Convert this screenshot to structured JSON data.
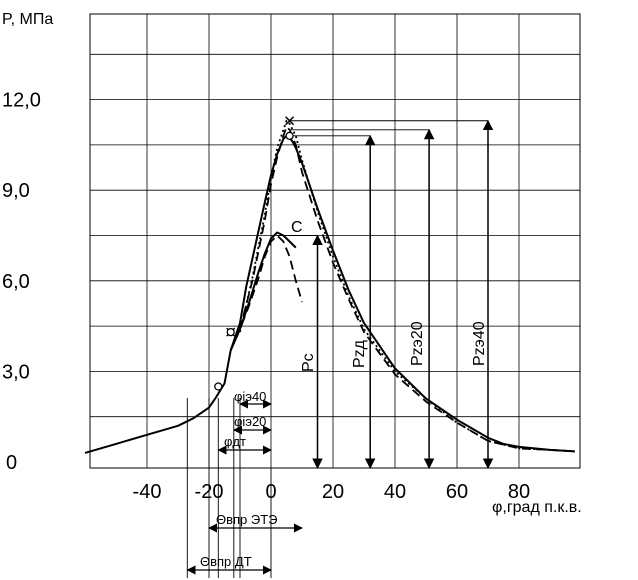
{
  "chart_data": {
    "type": "line",
    "ylabel": "P, МПа",
    "xlabel": "φ,град п.к.в.",
    "xlim": [
      -60,
      100
    ],
    "ylim": [
      0,
      15
    ],
    "x_ticks": [
      -40,
      -20,
      0,
      20,
      40,
      60,
      80
    ],
    "x_tick_labels": [
      "-40",
      "-20",
      "0",
      "20",
      "40",
      "60",
      "80"
    ],
    "y_ticks": [
      0,
      3,
      6,
      9,
      12
    ],
    "y_tick_labels": [
      "0",
      "3,0",
      "6,0",
      "9,0",
      "12,0"
    ],
    "grid": true,
    "series": [
      {
        "style": "solid",
        "x": [
          -60,
          -50,
          -40,
          -30,
          -25,
          -20,
          -18,
          -15,
          -13,
          -10,
          -8,
          -5,
          -2,
          0,
          2,
          4,
          5,
          6,
          7,
          8,
          10,
          15,
          20,
          25,
          30,
          40,
          50,
          60,
          70,
          75,
          80,
          85,
          90,
          98
        ],
        "y": [
          0.3,
          0.6,
          0.9,
          1.2,
          1.45,
          1.8,
          2.1,
          2.6,
          3.7,
          4.6,
          5.8,
          7.2,
          8.6,
          9.5,
          10.2,
          10.7,
          10.8,
          10.75,
          10.6,
          10.4,
          9.9,
          8.4,
          7.0,
          5.7,
          4.6,
          3.1,
          2.1,
          1.4,
          0.8,
          0.6,
          0.5,
          0.45,
          0.4,
          0.35
        ]
      },
      {
        "style": "solid",
        "x": [
          -13,
          -10,
          -7,
          -4,
          -2,
          0,
          2,
          4,
          6,
          8
        ],
        "y": [
          3.7,
          4.4,
          5.3,
          6.3,
          6.9,
          7.4,
          7.6,
          7.5,
          7.3,
          7.1
        ]
      },
      {
        "style": "dashed",
        "x": [
          -13,
          -10,
          -7,
          -4,
          -2,
          0,
          2,
          4,
          6,
          8,
          10
        ],
        "y": [
          3.7,
          4.4,
          5.2,
          6.1,
          6.8,
          7.3,
          7.5,
          7.3,
          6.8,
          6.0,
          5.3
        ]
      },
      {
        "style": "dashed",
        "x": [
          -10,
          -6,
          -2,
          0,
          2,
          4,
          5,
          6,
          8,
          10,
          15,
          20,
          25,
          30,
          40,
          50,
          60,
          70,
          80,
          90,
          98
        ],
        "y": [
          4.4,
          6.0,
          8.0,
          9.2,
          10.1,
          10.8,
          11.1,
          11.0,
          10.5,
          9.6,
          8.0,
          6.6,
          5.4,
          4.3,
          2.9,
          2.0,
          1.3,
          0.7,
          0.45,
          0.4,
          0.35
        ]
      },
      {
        "style": "dotted",
        "x": [
          -10,
          -6,
          -2,
          0,
          2,
          4,
          5,
          6,
          8,
          10,
          15,
          20,
          25,
          30,
          40,
          50,
          60,
          70,
          80,
          90,
          98
        ],
        "y": [
          4.3,
          6.1,
          8.2,
          9.4,
          10.4,
          11.0,
          11.3,
          11.2,
          10.8,
          10.0,
          8.3,
          6.8,
          5.5,
          4.4,
          3.0,
          2.1,
          1.3,
          0.7,
          0.45,
          0.4,
          0.35
        ]
      }
    ],
    "markers": [
      {
        "x": -17,
        "y": 2.5,
        "symbol": "o"
      },
      {
        "x": -13,
        "y": 4.3,
        "symbol": "x"
      },
      {
        "x": -13,
        "y": 4.3,
        "symbol": "o"
      },
      {
        "x": 6,
        "y": 11.3,
        "symbol": "x"
      },
      {
        "x": 6,
        "y": 10.8,
        "symbol": "o"
      }
    ],
    "annotations": {
      "point_c": "C",
      "pc": "Pc",
      "pzd": "Pzд",
      "pze20": "Pzэ20",
      "pze40": "Pzэ40",
      "phi_ie40": "φiэ40",
      "phi_ie20": "φiэ20",
      "phi_dt": "φдт",
      "theta_ete": "Θвпр ЭТЭ",
      "theta_dt": "Θвпр ДТ"
    },
    "pressure_arrows": [
      {
        "label": "Pc",
        "x": 15,
        "y": 7.5
      },
      {
        "label": "Pzд",
        "x": 32,
        "y": 10.8
      },
      {
        "label": "Pzэ20",
        "x": 51,
        "y": 11.0
      },
      {
        "label": "Pzэ40",
        "x": 70,
        "y": 11.3
      }
    ],
    "angle_arrows": [
      {
        "label": "φiэ40",
        "from": -10,
        "to": 0
      },
      {
        "label": "φiэ20",
        "from": -12,
        "to": 0
      },
      {
        "label": "φдт",
        "from": -17,
        "to": 0
      },
      {
        "label": "Θвпр ЭТЭ",
        "from": -20,
        "to": 10
      },
      {
        "label": "Θвпр ДТ",
        "from": -27,
        "to": 0
      }
    ]
  }
}
